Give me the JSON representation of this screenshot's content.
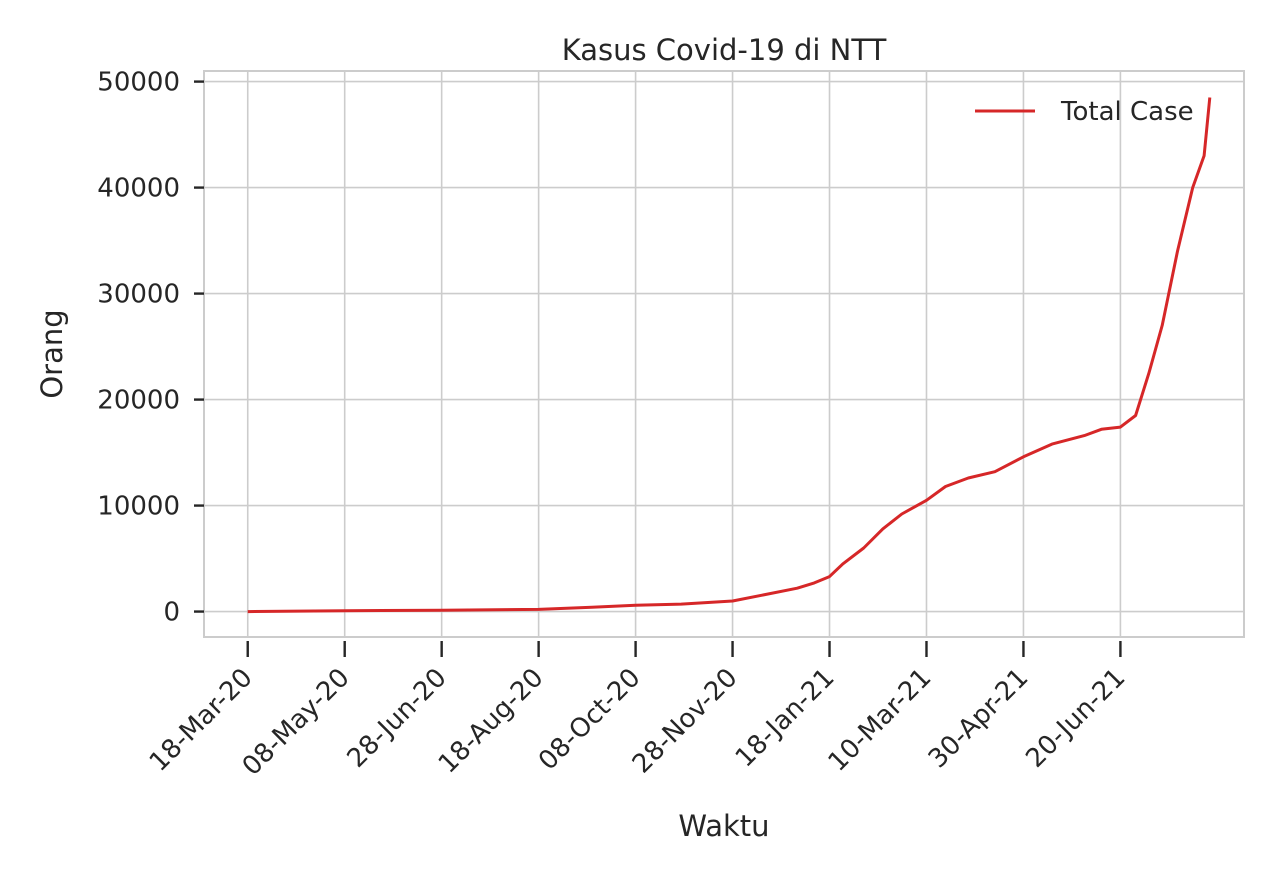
{
  "chart_data": {
    "type": "line",
    "title": "Kasus Covid-19 di NTT",
    "xlabel": "Waktu",
    "ylabel": "Orang",
    "x_tick_labels": [
      "18-Mar-20",
      "08-May-20",
      "28-Jun-20",
      "18-Aug-20",
      "08-Oct-20",
      "28-Nov-20",
      "18-Jan-21",
      "10-Mar-21",
      "30-Apr-21",
      "20-Jun-21"
    ],
    "x_ticks": [
      "2020-03-18",
      "2020-05-08",
      "2020-06-28",
      "2020-08-18",
      "2020-10-08",
      "2020-11-28",
      "2021-01-18",
      "2021-03-10",
      "2021-04-30",
      "2021-06-20"
    ],
    "xlim": [
      "2020-02-24",
      "2021-08-24"
    ],
    "y_ticks": [
      0,
      10000,
      20000,
      30000,
      40000,
      50000
    ],
    "ylim": [
      -2400,
      51000
    ],
    "grid": true,
    "legend_position": "top-right",
    "series": [
      {
        "name": "Total Case",
        "color": "#d62728",
        "x": [
          "2020-03-18",
          "2020-05-08",
          "2020-06-28",
          "2020-08-18",
          "2020-09-15",
          "2020-10-08",
          "2020-11-01",
          "2020-11-28",
          "2020-12-15",
          "2021-01-01",
          "2021-01-10",
          "2021-01-18",
          "2021-01-25",
          "2021-02-05",
          "2021-02-15",
          "2021-02-25",
          "2021-03-10",
          "2021-03-20",
          "2021-04-01",
          "2021-04-15",
          "2021-04-30",
          "2021-05-15",
          "2021-06-01",
          "2021-06-10",
          "2021-06-20",
          "2021-06-28",
          "2021-07-05",
          "2021-07-12",
          "2021-07-20",
          "2021-07-28",
          "2021-08-03",
          "2021-08-06"
        ],
        "values": [
          0,
          80,
          120,
          200,
          400,
          600,
          700,
          1000,
          1600,
          2200,
          2700,
          3300,
          4500,
          6000,
          7800,
          9200,
          10500,
          11800,
          12600,
          13200,
          14600,
          15800,
          16600,
          17200,
          17400,
          18500,
          22500,
          27000,
          34000,
          40000,
          43000,
          48500
        ]
      }
    ]
  }
}
